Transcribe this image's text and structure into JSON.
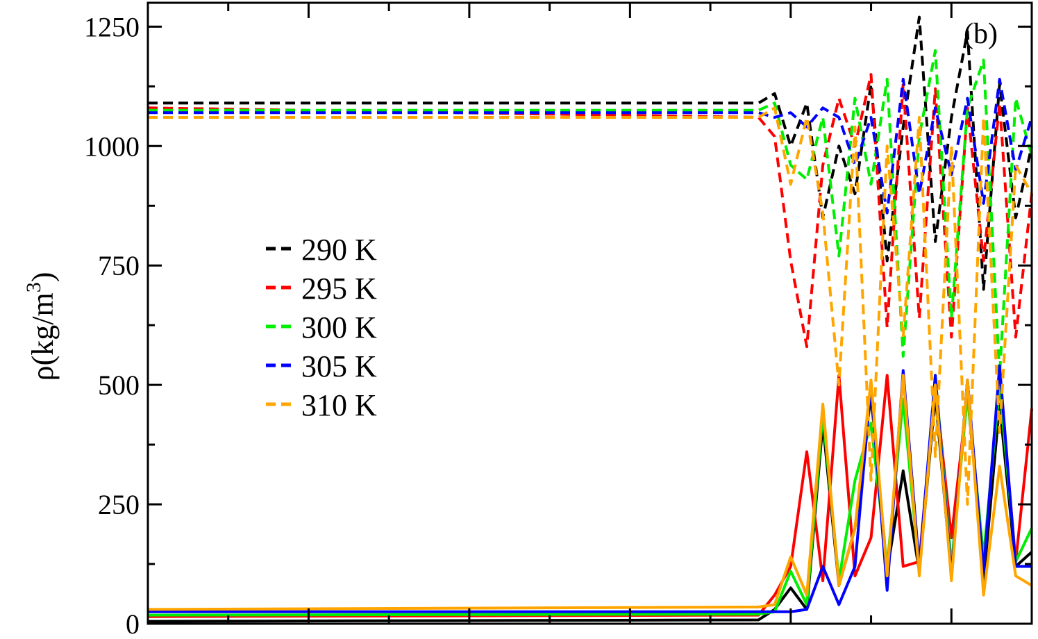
{
  "chart_data": {
    "type": "line",
    "panel_label": "(b)",
    "ylabel": {
      "main": "ρ(kg/m",
      "sup": "3",
      "close": ")"
    },
    "xlabel": "",
    "xlim": [
      0,
      11
    ],
    "ylim": [
      0,
      1300
    ],
    "x_major_ticks": [
      0,
      1,
      2,
      3,
      4,
      5,
      6,
      7,
      8,
      9,
      10,
      11
    ],
    "y_major_ticks": [
      0,
      250,
      500,
      750,
      1000,
      1250
    ],
    "y_tick_labels": [
      "0",
      "250",
      "500",
      "750",
      "1000",
      "1250"
    ],
    "legend": {
      "position": "center-left",
      "entries": [
        "290 K",
        "295 K",
        "300 K",
        "305 K",
        "310 K"
      ]
    },
    "series": [
      {
        "name": "290 K",
        "color": "#000000",
        "x": [
          0.0,
          7.6,
          7.8,
          8.0,
          8.2,
          8.4,
          8.6,
          8.8,
          9.0,
          9.2,
          9.4,
          9.6,
          9.8,
          10.0,
          10.2,
          10.4,
          10.6,
          10.8,
          11.0
        ],
        "dashed_y": [
          1090,
          1090,
          1110,
          1000,
          1090,
          850,
          1000,
          900,
          1130,
          760,
          1040,
          1270,
          800,
          1060,
          1240,
          700,
          1130,
          850,
          1000
        ],
        "solid_y": [
          5,
          8,
          30,
          75,
          30,
          420,
          80,
          200,
          480,
          110,
          320,
          110,
          480,
          100,
          510,
          90,
          460,
          120,
          150
        ]
      },
      {
        "name": "295 K",
        "color": "#ff0000",
        "x": [
          0.0,
          7.6,
          7.8,
          8.0,
          8.2,
          8.4,
          8.6,
          8.8,
          9.0,
          9.2,
          9.4,
          9.6,
          9.8,
          10.0,
          10.2,
          10.4,
          10.6,
          10.8,
          11.0
        ],
        "dashed_y": [
          1080,
          1060,
          1020,
          760,
          580,
          960,
          1100,
          1000,
          1150,
          620,
          1130,
          640,
          1120,
          600,
          1080,
          760,
          1090,
          600,
          900
        ],
        "solid_y": [
          15,
          18,
          60,
          120,
          360,
          90,
          520,
          100,
          180,
          520,
          120,
          130,
          500,
          180,
          480,
          120,
          520,
          130,
          450
        ]
      },
      {
        "name": "300 K",
        "color": "#00ee00",
        "x": [
          0.0,
          7.6,
          7.8,
          8.0,
          8.2,
          8.4,
          8.6,
          8.8,
          9.0,
          9.2,
          9.4,
          9.6,
          9.8,
          10.0,
          10.2,
          10.4,
          10.6,
          10.8,
          11.0
        ],
        "dashed_y": [
          1075,
          1075,
          1090,
          960,
          930,
          1060,
          770,
          1100,
          920,
          1140,
          560,
          1020,
          1200,
          640,
          1080,
          1180,
          520,
          1100,
          980
        ],
        "solid_y": [
          18,
          20,
          25,
          110,
          40,
          440,
          90,
          300,
          420,
          120,
          470,
          110,
          520,
          120,
          480,
          140,
          500,
          130,
          200
        ]
      },
      {
        "name": "305 K",
        "color": "#0000ff",
        "x": [
          0.0,
          7.6,
          7.8,
          8.0,
          8.2,
          8.4,
          8.6,
          8.8,
          9.0,
          9.2,
          9.4,
          9.6,
          9.8,
          10.0,
          10.2,
          10.4,
          10.6,
          10.8,
          11.0
        ],
        "dashed_y": [
          1070,
          1070,
          1060,
          1070,
          1040,
          1080,
          1060,
          960,
          1060,
          860,
          1140,
          900,
          1080,
          940,
          1100,
          880,
          1140,
          950,
          1060
        ],
        "solid_y": [
          25,
          25,
          25,
          25,
          30,
          120,
          40,
          120,
          500,
          70,
          530,
          120,
          520,
          100,
          510,
          110,
          540,
          120,
          120
        ]
      },
      {
        "name": "310 K",
        "color": "#ffa500",
        "x": [
          0.0,
          7.6,
          7.8,
          8.0,
          8.2,
          8.4,
          8.6,
          8.8,
          9.0,
          9.2,
          9.4,
          9.6,
          9.8,
          10.0,
          10.2,
          10.4,
          10.6,
          10.8,
          11.0
        ],
        "dashed_y": [
          1060,
          1060,
          1080,
          920,
          1060,
          860,
          500,
          1040,
          300,
          1000,
          600,
          1060,
          350,
          1000,
          250,
          1060,
          400,
          960,
          900
        ],
        "solid_y": [
          30,
          35,
          40,
          140,
          60,
          460,
          80,
          200,
          510,
          100,
          520,
          100,
          500,
          90,
          510,
          60,
          330,
          100,
          80
        ]
      }
    ]
  }
}
